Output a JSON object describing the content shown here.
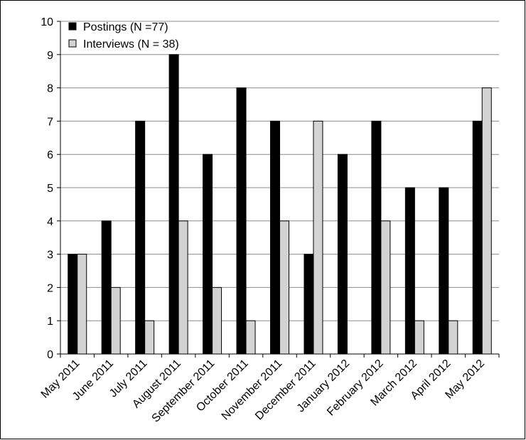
{
  "chart_data": {
    "type": "bar",
    "categories": [
      "May 2011",
      "June 2011",
      "July 2011",
      "August 2011",
      "September 2011",
      "October 2011",
      "November 2011",
      "December 2011",
      "January 2012",
      "February 2012",
      "March 2012",
      "April 2012",
      "May 2012"
    ],
    "series": [
      {
        "name": "Postings (N =77)",
        "color": "#000000",
        "values": [
          3,
          4,
          7,
          9,
          6,
          8,
          7,
          3,
          6,
          7,
          5,
          5,
          7
        ]
      },
      {
        "name": "Interviews (N = 38)",
        "color": "#d3d3d3",
        "values": [
          3,
          2,
          1,
          4,
          2,
          1,
          4,
          7,
          0,
          4,
          1,
          1,
          8
        ]
      }
    ],
    "title": "",
    "xlabel": "",
    "ylabel": "",
    "ylim": [
      0,
      10
    ],
    "yticks": [
      0,
      1,
      2,
      3,
      4,
      5,
      6,
      7,
      8,
      9,
      10
    ],
    "grid": true,
    "legend_position": "top-left"
  }
}
